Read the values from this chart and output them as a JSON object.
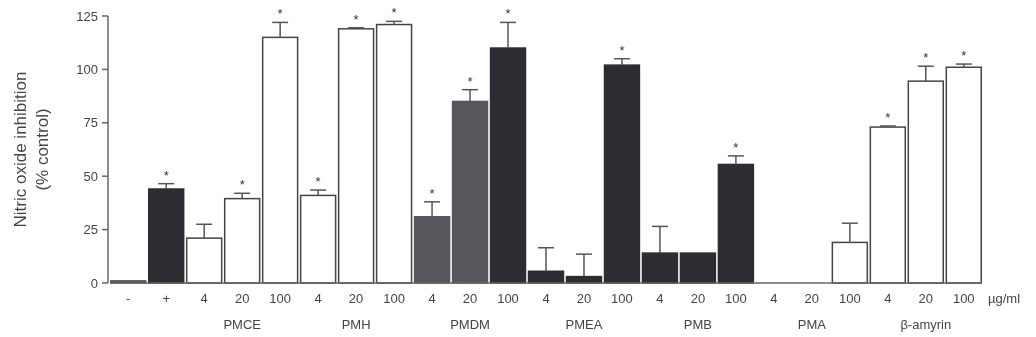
{
  "chart_data": {
    "type": "bar",
    "ylabel": "Nitric oxide inhibition\n(% control)",
    "categories": [
      "-",
      "+",
      "4",
      "20",
      "100",
      "4",
      "20",
      "100",
      "4",
      "20",
      "100",
      "4",
      "20",
      "100",
      "4",
      "20",
      "100",
      "4",
      "20",
      "100",
      "4",
      "20",
      "100"
    ],
    "values": [
      1,
      44,
      21,
      39.5,
      115,
      41,
      119,
      121,
      31,
      85,
      110,
      5.5,
      3,
      102,
      14,
      14,
      55.5,
      null,
      null,
      19,
      73,
      94.5,
      101
    ],
    "errors": [
      null,
      [
        44,
        46.5
      ],
      [
        21,
        27.5
      ],
      [
        39.5,
        42
      ],
      [
        115,
        122
      ],
      [
        41,
        43.5
      ],
      [
        119,
        119.5
      ],
      [
        121,
        122.5
      ],
      [
        31,
        38
      ],
      [
        85,
        90.5
      ],
      [
        110,
        122
      ],
      [
        5.5,
        16.5
      ],
      [
        3,
        13.5
      ],
      [
        102,
        105
      ],
      [
        14,
        26.5
      ],
      null,
      [
        55.5,
        59.5
      ],
      null,
      null,
      [
        19,
        28
      ],
      [
        73,
        73.5
      ],
      [
        94.5,
        101.5
      ],
      [
        101,
        102.5
      ]
    ],
    "colors": [
      "#55575c",
      "#2b2d33",
      "#ffffff",
      "#ffffff",
      "#ffffff",
      "#ffffff",
      "#ffffff",
      "#ffffff",
      "#55575c",
      "#55575c",
      "#2b2d33",
      "#2b2d33",
      "#2b2d33",
      "#2b2d33",
      "#2b2d33",
      "#2b2d33",
      "#2b2d33",
      null,
      null,
      "#ffffff",
      "#ffffff",
      "#ffffff",
      "#ffffff"
    ],
    "value_labels": [
      null,
      "*",
      null,
      "*",
      "*",
      "*",
      "*",
      "*",
      "*",
      "*",
      "*",
      null,
      null,
      "*",
      null,
      null,
      "*",
      null,
      null,
      null,
      "*",
      "*",
      "*"
    ],
    "annotations": [
      "PMCE",
      "PMH",
      "PMDM",
      "PMEA",
      "PMB",
      "PMA",
      "β-amyrin",
      "µg/ml"
    ],
    "ylim": [
      0,
      125
    ],
    "yticks": [
      0,
      25,
      50,
      75,
      100,
      125
    ]
  }
}
